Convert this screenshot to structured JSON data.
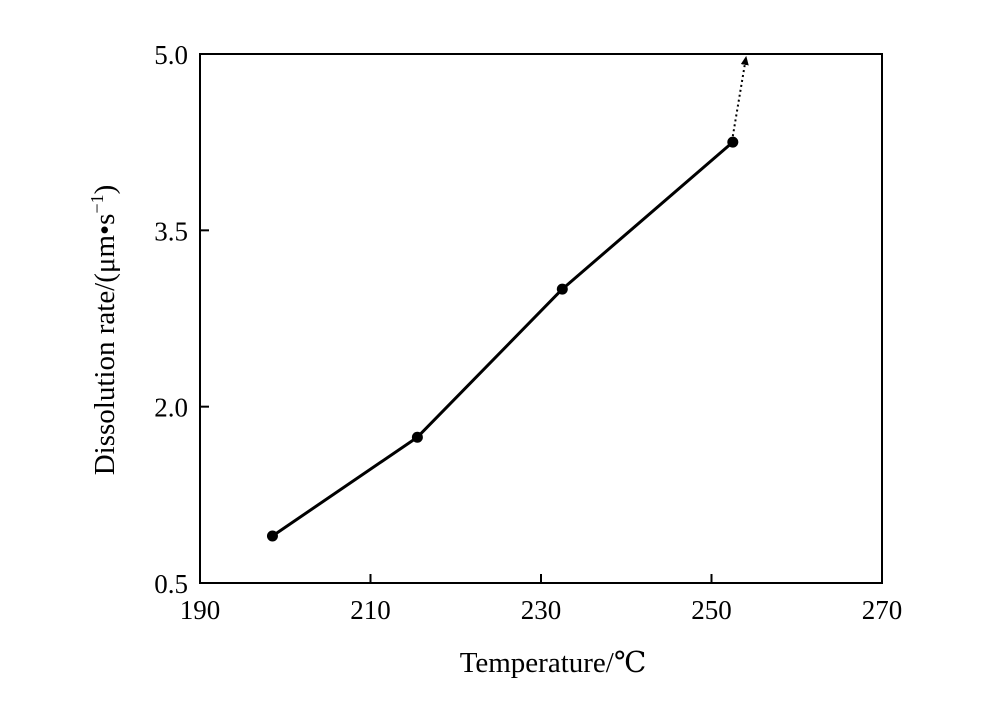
{
  "chart_data": {
    "type": "line",
    "title": "",
    "xlabel": "Temperature/℃",
    "ylabel": "Dissolution rate/(μm•s",
    "ylabel_sup": "−1",
    "ylabel_close": ")",
    "xlim": [
      190,
      270
    ],
    "ylim": [
      0.5,
      5.0
    ],
    "xticks": [
      190,
      210,
      230,
      250,
      270
    ],
    "xtick_labels": [
      "190",
      "210",
      "230",
      "250",
      "270"
    ],
    "yticks": [
      0.5,
      2.0,
      3.5,
      5.0
    ],
    "ytick_labels": [
      "0.5",
      "2.0",
      "3.5",
      "5.0"
    ],
    "grid": false,
    "series": [
      {
        "x": [
          198.5,
          215.5,
          232.5,
          252.5
        ],
        "y": [
          0.9,
          1.74,
          3.0,
          4.25
        ],
        "color": "#000000",
        "marker": "circle"
      }
    ],
    "annotations": [
      {
        "type": "dotted-arrow",
        "from": [
          252.5,
          4.25
        ],
        "to": [
          254.0,
          4.95
        ]
      }
    ]
  }
}
